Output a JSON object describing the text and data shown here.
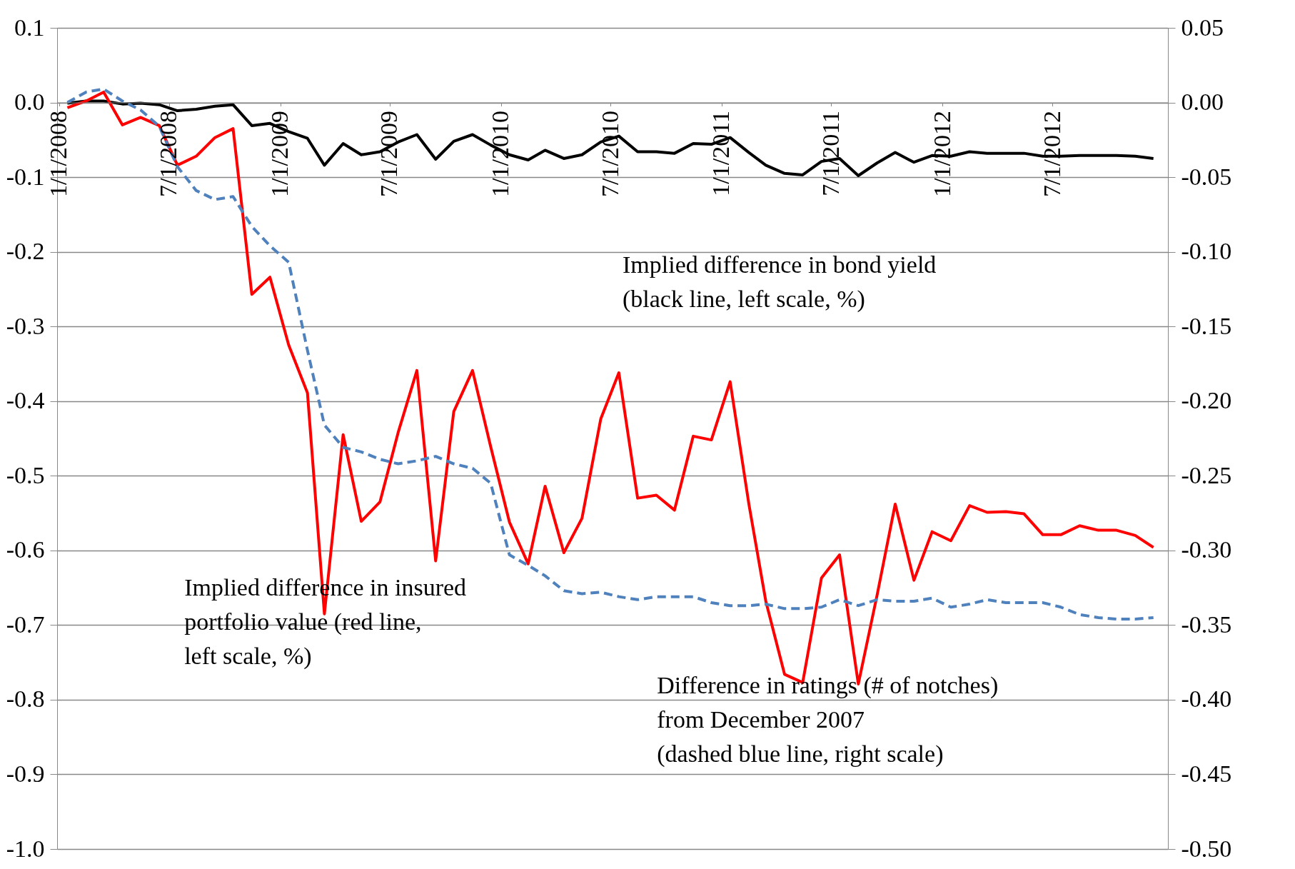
{
  "chart_data": {
    "type": "line",
    "x": [
      "2008-01-15",
      "2008-02-15",
      "2008-03-15",
      "2008-04-15",
      "2008-05-15",
      "2008-06-15",
      "2008-07-15",
      "2008-08-15",
      "2008-09-15",
      "2008-10-15",
      "2008-11-15",
      "2008-12-15",
      "2009-01-15",
      "2009-02-15",
      "2009-03-15",
      "2009-04-15",
      "2009-05-15",
      "2009-06-15",
      "2009-07-15",
      "2009-08-15",
      "2009-09-15",
      "2009-10-15",
      "2009-11-15",
      "2009-12-15",
      "2010-01-15",
      "2010-02-15",
      "2010-03-15",
      "2010-04-15",
      "2010-05-15",
      "2010-06-15",
      "2010-07-15",
      "2010-08-15",
      "2010-09-15",
      "2010-10-15",
      "2010-11-15",
      "2010-12-15",
      "2011-01-15",
      "2011-02-15",
      "2011-03-15",
      "2011-04-15",
      "2011-05-15",
      "2011-06-15",
      "2011-07-15",
      "2011-08-15",
      "2011-09-15",
      "2011-10-15",
      "2011-11-15",
      "2011-12-15",
      "2012-01-15",
      "2012-02-15",
      "2012-03-15",
      "2012-04-15",
      "2012-05-15",
      "2012-06-15",
      "2012-07-15",
      "2012-08-15",
      "2012-09-15",
      "2012-10-15",
      "2012-11-15",
      "2012-12-15"
    ],
    "series": [
      {
        "color": "#000000",
        "line_style": "solid",
        "values": [
          -0.001,
          0.002,
          0.002,
          -0.002,
          -0.001,
          -0.003,
          -0.011,
          -0.009,
          -0.005,
          -0.003,
          -0.031,
          -0.028,
          -0.039,
          -0.048,
          -0.084,
          -0.055,
          -0.07,
          -0.066,
          -0.053,
          -0.043,
          -0.076,
          -0.052,
          -0.043,
          -0.057,
          -0.07,
          -0.077,
          -0.064,
          -0.075,
          -0.07,
          -0.053,
          -0.045,
          -0.066,
          -0.066,
          -0.068,
          -0.055,
          -0.056,
          -0.047,
          -0.067,
          -0.084,
          -0.095,
          -0.097,
          -0.079,
          -0.075,
          -0.098,
          -0.081,
          -0.067,
          -0.08,
          -0.071,
          -0.072,
          -0.066,
          -0.068,
          -0.068,
          -0.068,
          -0.072,
          -0.072,
          -0.071,
          -0.071,
          -0.071,
          -0.072,
          -0.075
        ]
      },
      {
        "color": "#ff0000",
        "line_style": "solid",
        "values": [
          -0.007,
          0.002,
          0.014,
          -0.03,
          -0.02,
          -0.031,
          -0.084,
          -0.072,
          -0.047,
          -0.035,
          -0.257,
          -0.234,
          -0.325,
          -0.389,
          -0.685,
          -0.445,
          -0.561,
          -0.535,
          -0.442,
          -0.359,
          -0.614,
          -0.414,
          -0.359,
          -0.461,
          -0.562,
          -0.618,
          -0.514,
          -0.603,
          -0.557,
          -0.424,
          -0.362,
          -0.53,
          -0.526,
          -0.546,
          -0.447,
          -0.452,
          -0.374,
          -0.538,
          -0.668,
          -0.766,
          -0.777,
          -0.637,
          -0.606,
          -0.779,
          -0.66,
          -0.538,
          -0.64,
          -0.575,
          -0.587,
          -0.54,
          -0.549,
          -0.548,
          -0.551,
          -0.579,
          -0.579,
          -0.567,
          -0.573,
          -0.573,
          -0.58,
          -0.596
        ]
      },
      {
        "color": "#4f81bd",
        "line_style": "dashed",
        "axis": "y2",
        "values": [
          0.0,
          0.007,
          0.009,
          0.001,
          -0.005,
          -0.016,
          -0.043,
          -0.059,
          -0.065,
          -0.063,
          -0.083,
          -0.096,
          -0.107,
          -0.166,
          -0.216,
          -0.231,
          -0.234,
          -0.239,
          -0.242,
          -0.24,
          -0.237,
          -0.242,
          -0.245,
          -0.255,
          -0.303,
          -0.31,
          -0.317,
          -0.327,
          -0.329,
          -0.328,
          -0.331,
          -0.333,
          -0.331,
          -0.331,
          -0.331,
          -0.335,
          -0.337,
          -0.337,
          -0.336,
          -0.339,
          -0.339,
          -0.338,
          -0.333,
          -0.337,
          -0.333,
          -0.334,
          -0.334,
          -0.332,
          -0.338,
          -0.336,
          -0.333,
          -0.335,
          -0.335,
          -0.335,
          -0.338,
          -0.343,
          -0.345,
          -0.346,
          -0.346,
          -0.345
        ]
      }
    ],
    "xlim": [
      "2007-12-29",
      "2013-01-08"
    ],
    "xticks": [
      {
        "value": "2008-01-01",
        "label": "1/1/2008"
      },
      {
        "value": "2008-07-01",
        "label": "7/1/2008"
      },
      {
        "value": "2009-01-01",
        "label": "1/1/2009"
      },
      {
        "value": "2009-07-01",
        "label": "7/1/2009"
      },
      {
        "value": "2010-01-01",
        "label": "1/1/2010"
      },
      {
        "value": "2010-07-01",
        "label": "7/1/2010"
      },
      {
        "value": "2011-01-01",
        "label": "1/1/2011"
      },
      {
        "value": "2011-07-01",
        "label": "7/1/2011"
      },
      {
        "value": "2012-01-01",
        "label": "1/1/2012"
      },
      {
        "value": "2012-07-01",
        "label": "7/1/2012"
      }
    ],
    "ylim": [
      -1.0,
      0.1
    ],
    "yticks": [
      {
        "value": 0.1,
        "label": "0.1"
      },
      {
        "value": 0,
        "label": "0.0"
      },
      {
        "value": -0.1,
        "label": "-0.1"
      },
      {
        "value": -0.2,
        "label": "-0.2"
      },
      {
        "value": -0.3,
        "label": "-0.3"
      },
      {
        "value": -0.4,
        "label": "-0.4"
      },
      {
        "value": -0.5,
        "label": "-0.5"
      },
      {
        "value": -0.6,
        "label": "-0.6"
      },
      {
        "value": -0.7,
        "label": "-0.7"
      },
      {
        "value": -0.8,
        "label": "-0.8"
      },
      {
        "value": -0.9,
        "label": "-0.9"
      },
      {
        "value": -1.0,
        "label": "-1.0"
      }
    ],
    "y2lim": [
      -0.5,
      0.05
    ],
    "y2ticks": [
      {
        "value": 0.05,
        "label": "0.05"
      },
      {
        "value": 0,
        "label": "0.00"
      },
      {
        "value": -0.05,
        "label": "-0.05"
      },
      {
        "value": -0.1,
        "label": "-0.10"
      },
      {
        "value": -0.15,
        "label": "-0.15"
      },
      {
        "value": -0.2,
        "label": "-0.20"
      },
      {
        "value": -0.25,
        "label": "-0.25"
      },
      {
        "value": -0.3,
        "label": "-0.30"
      },
      {
        "value": -0.35,
        "label": "-0.35"
      },
      {
        "value": -0.4,
        "label": "-0.40"
      },
      {
        "value": -0.45,
        "label": "-0.45"
      },
      {
        "value": -0.5,
        "label": "-0.50"
      }
    ],
    "grid": "y",
    "marker": "none",
    "annotations": [
      "Implied difference in bond yield\n(black line, left scale, %)",
      "Implied difference in insured\nportfolio value (red line,\nleft scale, %)",
      "Difference in ratings (# of notches)\nfrom December 2007\n(dashed blue line, right scale)"
    ]
  }
}
